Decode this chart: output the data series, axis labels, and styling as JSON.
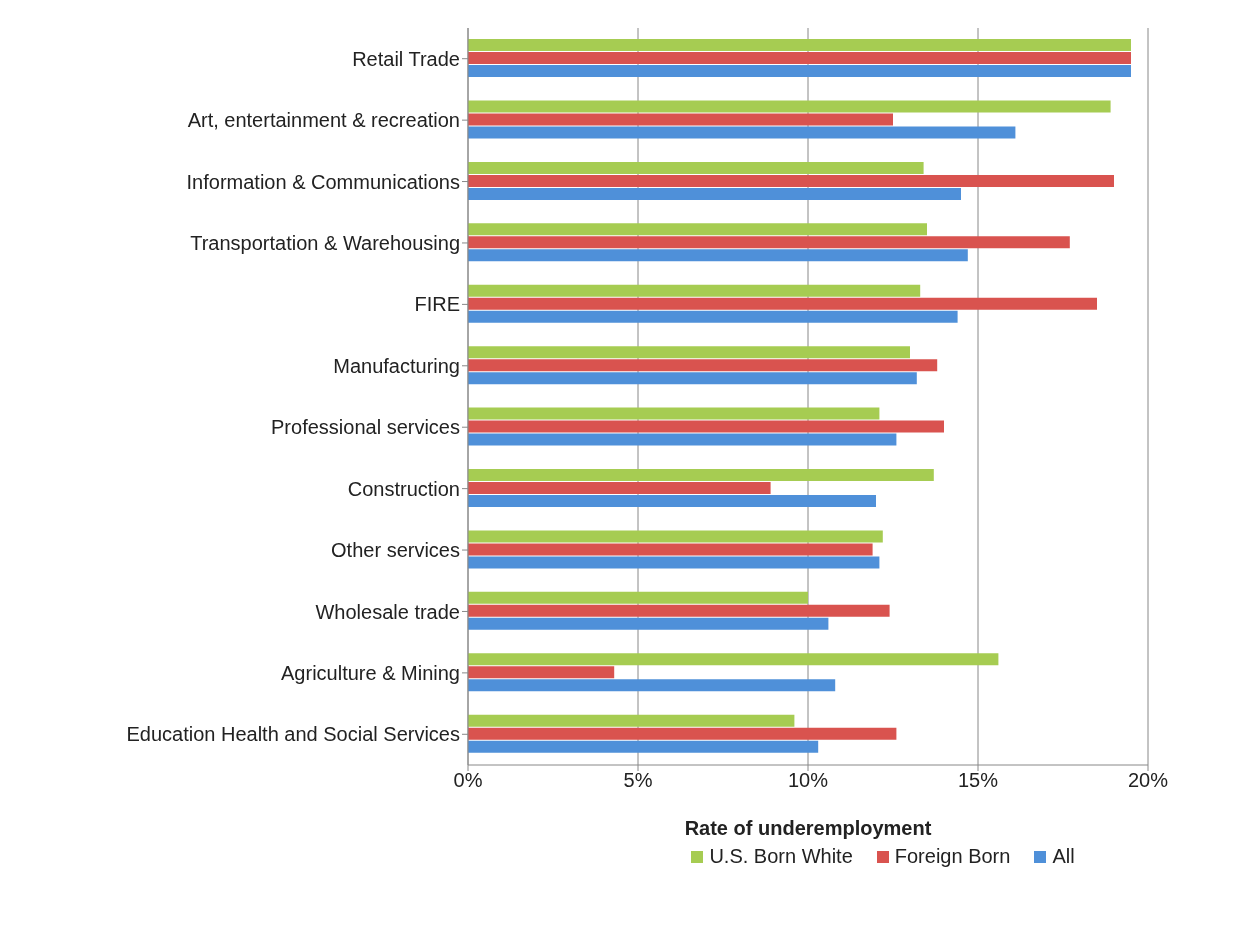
{
  "chart_data": {
    "type": "bar",
    "orientation": "horizontal",
    "xlabel": "Rate of underemployment",
    "categories": [
      "Retail Trade",
      "Art, entertainment & recreation",
      "Information & Communications",
      "Transportation & Warehousing",
      "FIRE",
      "Manufacturing",
      "Professional services",
      "Construction",
      "Other services",
      "Wholesale trade",
      "Agriculture & Mining",
      "Education Health and Social Services"
    ],
    "series": [
      {
        "name": "U.S. Born White",
        "color": "#a6cc52",
        "values": [
          19.5,
          18.9,
          13.4,
          13.5,
          13.3,
          13.0,
          12.1,
          13.7,
          12.2,
          10.0,
          15.6,
          9.6
        ]
      },
      {
        "name": "Foreign Born",
        "color": "#d9534f",
        "values": [
          19.5,
          12.5,
          19.0,
          17.7,
          18.5,
          13.8,
          14.0,
          8.9,
          11.9,
          12.4,
          4.3,
          12.6
        ]
      },
      {
        "name": "All",
        "color": "#4f90d9",
        "values": [
          19.5,
          16.1,
          14.5,
          14.7,
          14.4,
          13.2,
          12.6,
          12.0,
          12.1,
          10.6,
          10.8,
          10.3
        ]
      }
    ],
    "xlim": [
      0,
      20
    ],
    "xticks": [
      {
        "value": 0,
        "label": "0%"
      },
      {
        "value": 5,
        "label": "5%"
      },
      {
        "value": 10,
        "label": "10%"
      },
      {
        "value": 15,
        "label": "15%"
      },
      {
        "value": 20,
        "label": "20%"
      }
    ],
    "grid": "x",
    "legend": "bottom"
  }
}
